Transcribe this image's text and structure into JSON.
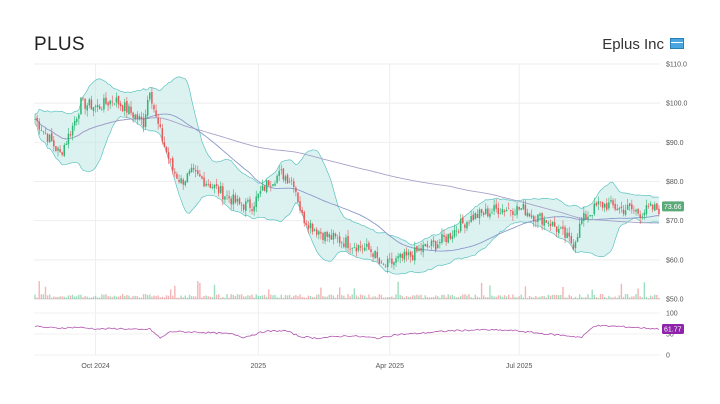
{
  "header": {
    "ticker": "PLUS",
    "company": "Eplus Inc",
    "flag_icon": "flag-icon"
  },
  "chart_data": {
    "type": "candlestick",
    "price_axis": {
      "ylim": [
        50,
        110
      ],
      "ticks": [
        50,
        60,
        70,
        80,
        90,
        100,
        110
      ],
      "tick_labels": [
        "$50.0",
        "$60.0",
        "$70.0",
        "$80.0",
        "$90.0",
        "$100.0",
        "$110.0"
      ]
    },
    "rsi_axis": {
      "ylim": [
        0,
        100
      ],
      "ticks": [
        0,
        50,
        100
      ],
      "tick_labels": [
        "0",
        "50",
        "100"
      ]
    },
    "time_axis": {
      "n": 300,
      "labels": [
        {
          "label": "Oct 2024",
          "index": 29
        },
        {
          "label": "2025",
          "index": 107
        },
        {
          "label": "Apr 2025",
          "index": 170
        },
        {
          "label": "Jul 2025",
          "index": 232
        }
      ]
    },
    "price_anchors": [
      [
        0,
        96
      ],
      [
        8,
        90
      ],
      [
        12,
        87
      ],
      [
        18,
        94
      ],
      [
        22,
        100
      ],
      [
        30,
        99
      ],
      [
        38,
        101
      ],
      [
        45,
        98
      ],
      [
        52,
        95
      ],
      [
        55,
        104
      ],
      [
        58,
        96
      ],
      [
        62,
        89
      ],
      [
        66,
        83
      ],
      [
        70,
        80
      ],
      [
        75,
        82
      ],
      [
        82,
        80
      ],
      [
        90,
        77
      ],
      [
        98,
        74
      ],
      [
        104,
        74
      ],
      [
        108,
        77
      ],
      [
        112,
        80
      ],
      [
        118,
        82
      ],
      [
        124,
        80
      ],
      [
        128,
        71
      ],
      [
        134,
        68
      ],
      [
        140,
        66
      ],
      [
        146,
        65
      ],
      [
        152,
        64
      ],
      [
        158,
        63
      ],
      [
        162,
        62
      ],
      [
        166,
        58
      ],
      [
        170,
        59
      ],
      [
        174,
        60
      ],
      [
        180,
        61
      ],
      [
        186,
        63
      ],
      [
        192,
        64
      ],
      [
        198,
        66
      ],
      [
        204,
        69
      ],
      [
        210,
        71
      ],
      [
        216,
        72
      ],
      [
        222,
        73
      ],
      [
        228,
        73
      ],
      [
        234,
        73
      ],
      [
        240,
        71
      ],
      [
        246,
        70
      ],
      [
        252,
        67
      ],
      [
        258,
        64
      ],
      [
        262,
        70
      ],
      [
        266,
        72
      ],
      [
        270,
        74
      ],
      [
        275,
        74
      ],
      [
        280,
        73
      ],
      [
        285,
        73
      ],
      [
        290,
        72
      ],
      [
        295,
        73
      ],
      [
        299,
        73
      ]
    ],
    "last_price": {
      "value": 73.66,
      "label": "73.66"
    },
    "rsi_anchors": [
      [
        0,
        68
      ],
      [
        10,
        64
      ],
      [
        20,
        66
      ],
      [
        30,
        62
      ],
      [
        40,
        63
      ],
      [
        50,
        60
      ],
      [
        55,
        62
      ],
      [
        60,
        40
      ],
      [
        65,
        56
      ],
      [
        80,
        54
      ],
      [
        95,
        50
      ],
      [
        100,
        42
      ],
      [
        110,
        56
      ],
      [
        120,
        58
      ],
      [
        127,
        44
      ],
      [
        135,
        40
      ],
      [
        150,
        46
      ],
      [
        165,
        40
      ],
      [
        172,
        48
      ],
      [
        185,
        52
      ],
      [
        200,
        58
      ],
      [
        215,
        60
      ],
      [
        230,
        58
      ],
      [
        245,
        50
      ],
      [
        255,
        46
      ],
      [
        262,
        42
      ],
      [
        268,
        70
      ],
      [
        280,
        68
      ],
      [
        299,
        62
      ]
    ],
    "last_rsi": {
      "value": 61.77,
      "label": "61.77"
    },
    "colors": {
      "up": "#2bb673",
      "down": "#e8585a",
      "band_fill": "#bfe8e6",
      "band_line": "#5bc3c0",
      "ma_short": "#8a99c9",
      "ma_long": "#a7a2c8",
      "rsi_line": "#b256b0",
      "price_badge": "#5bab7a",
      "rsi_badge": "#8e24aa"
    }
  }
}
